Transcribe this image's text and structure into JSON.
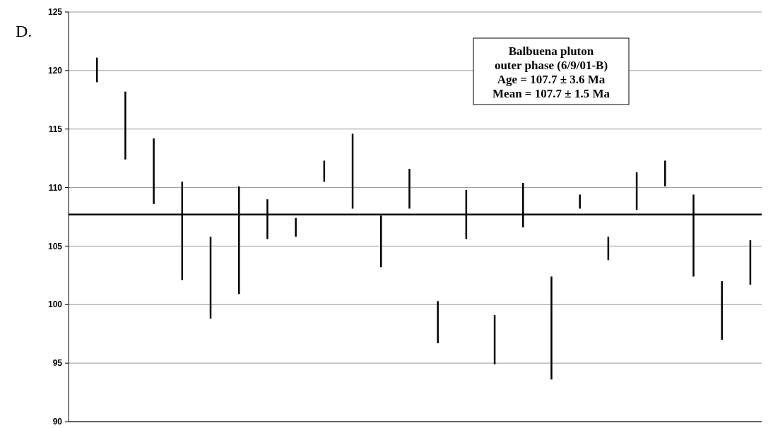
{
  "chart_data": {
    "type": "bar",
    "categories": [
      null,
      null,
      null,
      null,
      null,
      null,
      null,
      null,
      null,
      null,
      null,
      null,
      null,
      null,
      null,
      null,
      null,
      null,
      null,
      null,
      null,
      null,
      null,
      null
    ],
    "base": [
      119.0,
      112.4,
      108.6,
      102.1,
      98.8,
      100.9,
      105.6,
      105.8,
      110.5,
      108.2,
      103.2,
      108.2,
      96.7,
      105.6,
      94.9,
      106.6,
      93.6,
      108.2,
      103.8,
      108.1,
      110.1,
      102.4,
      97.0,
      101.7
    ],
    "values": [
      2.1,
      5.8,
      5.6,
      8.4,
      7.0,
      9.2,
      3.4,
      1.6,
      1.8,
      6.4,
      4.4,
      3.4,
      3.6,
      4.2,
      4.2,
      3.8,
      8.8,
      1.2,
      2.0,
      3.2,
      2.2,
      7.0,
      5.0,
      3.8
    ],
    "color": "#000000",
    "ylim": [
      90,
      125
    ],
    "yticks": [
      90,
      95,
      100,
      105,
      110,
      115,
      120,
      125
    ],
    "grid": "y",
    "ref_lines": [
      {
        "axis": "y",
        "value": 107.7,
        "color": "#000000"
      }
    ],
    "annotations": [
      "D.",
      "Balbuena pluton\nouter phase (6/9/01-B)\nAge = 107.7 ± 3.6 Ma\nMean = 107.7 ± 1.5 Ma"
    ]
  }
}
